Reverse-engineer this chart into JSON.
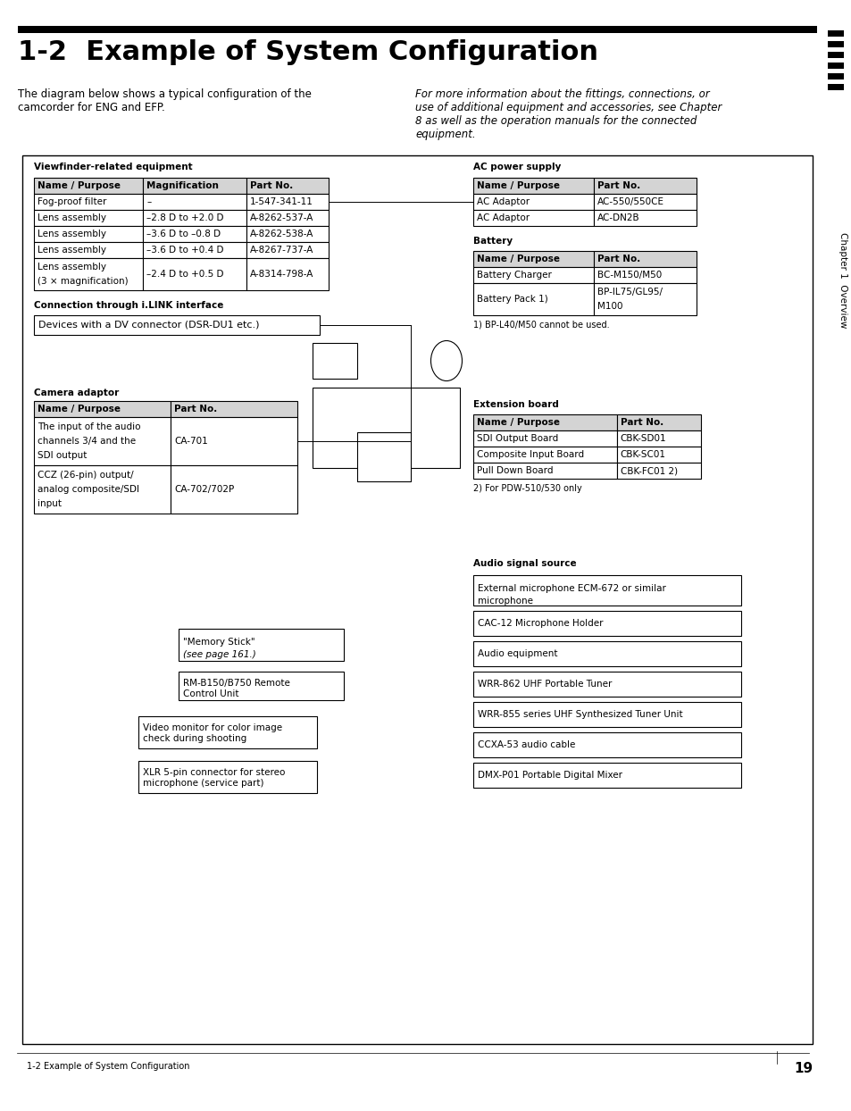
{
  "title": "1-2  Example of System Configuration",
  "body_text_left": "The diagram below shows a typical configuration of the\ncamcorder for ENG and EFP.",
  "body_text_right": "For more information about the fittings, connections, or\nuse of additional equipment and accessories, see Chapter\n8 as well as the operation manuals for the connected\nequipment.",
  "vf_section_title": "Viewfinder-related equipment",
  "vf_headers": [
    "Name / Purpose",
    "Magnification",
    "Part No."
  ],
  "vf_rows": [
    [
      "Fog-proof filter",
      "–",
      "1-547-341-11"
    ],
    [
      "Lens assembly",
      "–2.8 D to +2.0 D",
      "A-8262-537-A"
    ],
    [
      "Lens assembly",
      "–3.6 D to –0.8 D",
      "A-8262-538-A"
    ],
    [
      "Lens assembly",
      "–3.6 D to +0.4 D",
      "A-8267-737-A"
    ],
    [
      "Lens assembly\n(3 × magnification)",
      "–2.4 D to +0.5 D",
      "A-8314-798-A"
    ]
  ],
  "ilink_title": "Connection through i.LINK interface",
  "ilink_box": "Devices with a DV connector (DSR-DU1 etc.)",
  "camera_adaptor_title": "Camera adaptor",
  "ca_headers": [
    "Name / Purpose",
    "Part No."
  ],
  "ca_rows": [
    [
      "The input of the audio\nchannels 3/4 and the\nSDI output",
      "CA-701"
    ],
    [
      "CCZ (26-pin) output/\nanalog composite/SDI\ninput",
      "CA-702/702P"
    ]
  ],
  "ac_section_title": "AC power supply",
  "ac_headers": [
    "Name / Purpose",
    "Part No."
  ],
  "ac_rows": [
    [
      "AC Adaptor",
      "AC-550/550CE"
    ],
    [
      "AC Adaptor",
      "AC-DN2B"
    ]
  ],
  "battery_title": "Battery",
  "bat_headers": [
    "Name / Purpose",
    "Part No."
  ],
  "bat_rows": [
    [
      "Battery Charger",
      "BC-M150/M50"
    ],
    [
      "Battery Pack 1)",
      "BP-IL75/GL95/\nM100"
    ]
  ],
  "battery_footnote": "1) BP-L40/M50 cannot be used.",
  "ext_title": "Extension board",
  "ext_headers": [
    "Name / Purpose",
    "Part No."
  ],
  "ext_rows": [
    [
      "SDI Output Board",
      "CBK-SD01"
    ],
    [
      "Composite Input Board",
      "CBK-SC01"
    ],
    [
      "Pull Down Board",
      "CBK-FC01 2)"
    ]
  ],
  "ext_footnote": "2) For PDW-510/530 only",
  "audio_title": "Audio signal source",
  "audio_boxes": [
    "External microphone ECM-672 or similar\nmicrophone",
    "CAC-12 Microphone Holder",
    "Audio equipment",
    "WRR-862 UHF Portable Tuner",
    "WRR-855 series UHF Synthesized Tuner Unit",
    "CCXA-53 audio cable",
    "DMX-P01 Portable Digital Mixer"
  ],
  "bottom_boxes": [
    "\"Memory Stick\"\n(see page 161.)",
    "RM-B150/B750 Remote\nControl Unit",
    "Video monitor for color image\ncheck during shooting",
    "XLR 5-pin connector for stereo\nmicrophone (service part)"
  ],
  "page_number": "19",
  "footer_text": "1-2 Example of System Configuration",
  "sidebar_text": "Chapter 1  Overview",
  "bg_color": "#ffffff",
  "header_bg": "#d4d4d4"
}
